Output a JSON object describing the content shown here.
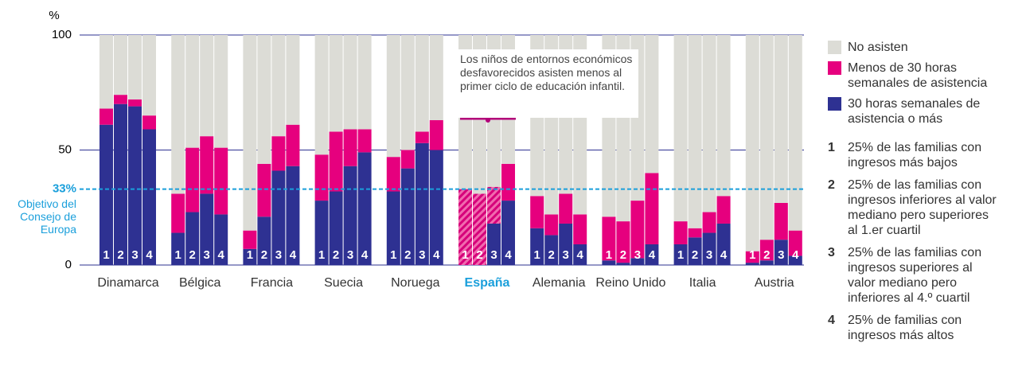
{
  "chart_data": {
    "type": "stacked_bar",
    "ylabel": "%",
    "ylim": [
      0,
      100
    ],
    "yticks": [
      0,
      50,
      100
    ],
    "grid": true,
    "categories": [
      "Dinamarca",
      "Bélgica",
      "Francia",
      "Suecia",
      "Noruega",
      "España",
      "Alemania",
      "Reino Unido",
      "Italia",
      "Austria"
    ],
    "highlight": "España",
    "highlight_color": "#1a9fdb",
    "groups": [
      "1",
      "2",
      "3",
      "4"
    ],
    "series": [
      {
        "name": "30 horas semanales de asistencia o más",
        "color": "#2e3192",
        "values": [
          [
            61,
            70,
            69,
            59
          ],
          [
            14,
            23,
            31,
            22
          ],
          [
            7,
            21,
            41,
            43
          ],
          [
            28,
            32,
            43,
            49
          ],
          [
            32,
            42,
            53,
            50
          ],
          [
            0,
            0,
            18,
            28
          ],
          [
            16,
            13,
            18,
            9
          ],
          [
            2,
            1,
            3,
            9
          ],
          [
            9,
            12,
            14,
            18
          ],
          [
            1,
            2,
            11,
            4
          ]
        ]
      },
      {
        "name": "Menos de 30 horas semanales de asistencia",
        "color": "#e6007e",
        "hatched": [
          [
            5,
            0
          ],
          [
            5,
            1
          ],
          [
            5,
            2
          ]
        ],
        "values": [
          [
            7,
            4,
            3,
            6
          ],
          [
            17,
            28,
            25,
            29
          ],
          [
            8,
            23,
            15,
            18
          ],
          [
            20,
            26,
            16,
            10
          ],
          [
            15,
            8,
            5,
            13
          ],
          [
            33,
            31,
            16,
            16
          ],
          [
            14,
            9,
            13,
            13
          ],
          [
            19,
            18,
            25,
            31
          ],
          [
            10,
            4,
            9,
            12
          ],
          [
            5,
            9,
            16,
            11
          ]
        ]
      },
      {
        "name": "No asisten",
        "color": "#dcdcd6",
        "values": [
          [
            32,
            26,
            28,
            35
          ],
          [
            69,
            49,
            44,
            49
          ],
          [
            85,
            56,
            44,
            39
          ],
          [
            52,
            42,
            41,
            41
          ],
          [
            53,
            50,
            42,
            37
          ],
          [
            67,
            69,
            66,
            56
          ],
          [
            70,
            78,
            69,
            78
          ],
          [
            79,
            81,
            72,
            60
          ],
          [
            81,
            84,
            77,
            70
          ],
          [
            94,
            89,
            73,
            85
          ]
        ]
      }
    ],
    "target": {
      "value": 33,
      "label": "33%",
      "text": "Objetivo del Consejo de Europa",
      "color": "#1a9fdb"
    },
    "annotation": "Los niños de entornos económicos desfavorecidos asisten menos al primer ciclo de educación infantil.",
    "notes": [
      {
        "number": "1",
        "text": "25% de las familias con ingresos más bajos"
      },
      {
        "number": "2",
        "text": "25% de las familias con ingresos inferiores al valor mediano pero superiores al 1.er cuartil"
      },
      {
        "number": "3",
        "text": "25% de las familias con ingresos superiores al valor mediano pero inferiores al 4.º cuartil"
      },
      {
        "number": "4",
        "text": "25% de familias con ingresos más altos"
      }
    ]
  }
}
